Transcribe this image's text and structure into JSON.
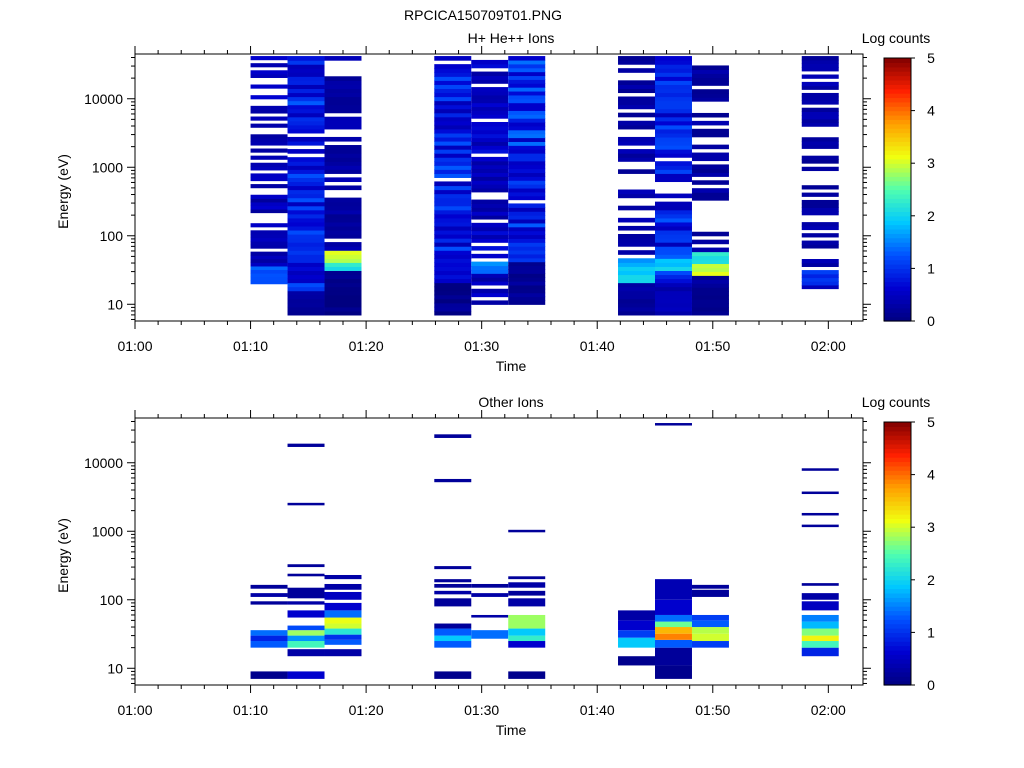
{
  "figure": {
    "title": "RPCICA150709T01.PNG"
  },
  "colors": {
    "colormap": [
      "#000080",
      "#0000d0",
      "#0050ff",
      "#00c8ff",
      "#50ffaf",
      "#f0ff10",
      "#ffa000",
      "#ff2000",
      "#800000"
    ]
  },
  "chart_data": [
    {
      "type": "heatmap",
      "title": "H+ He++ Ions",
      "xlabel": "Time",
      "ylabel": "Energy (eV)",
      "x_tick_labels": [
        "01:00",
        "01:10",
        "01:20",
        "01:30",
        "01:40",
        "01:50",
        "02:00"
      ],
      "x_ticks_minutes": [
        0,
        10,
        20,
        30,
        40,
        50,
        60
      ],
      "xlim_minutes": [
        0,
        63
      ],
      "y_scale": "log",
      "y_tick_labels": [
        "10",
        "100",
        "1000",
        "10000"
      ],
      "y_ticks": [
        10,
        100,
        1000,
        10000
      ],
      "ylim": [
        5.7,
        45000
      ],
      "colorbar": {
        "label": "Log counts",
        "tick_labels": [
          "0",
          "1",
          "2",
          "3",
          "4",
          "5"
        ],
        "ticks": [
          0,
          1,
          2,
          3,
          4,
          5
        ],
        "range": [
          0,
          5
        ]
      },
      "columns": [
        {
          "t0": 10.0,
          "t1": 13.2,
          "emin": 20,
          "emax": 42000,
          "bands": [
            [
              20,
              36,
              1.3
            ],
            [
              36,
              60,
              0.4
            ]
          ],
          "base": 0.5,
          "gap": 0.35,
          "seed": 11
        },
        {
          "t0": 13.2,
          "t1": 16.4,
          "emin": 7,
          "emax": 42000,
          "bands": [
            [
              7,
              15,
              0.2
            ],
            [
              20,
              40,
              0.6
            ],
            [
              40,
              100,
              1.0
            ]
          ],
          "base": 1.0,
          "gap": 0.05,
          "seed": 23
        },
        {
          "t0": 16.4,
          "t1": 19.6,
          "emin": 7,
          "emax": 42000,
          "bands": [
            [
              7,
              30,
              0.1
            ],
            [
              30,
              40,
              2.2
            ],
            [
              40,
              60,
              3.0
            ]
          ],
          "base": 0.35,
          "gap": 0.35,
          "seed": 37
        },
        {
          "t0": 25.9,
          "t1": 29.1,
          "emin": 7,
          "emax": 42000,
          "bands": [
            [
              7,
              20,
              0.1
            ],
            [
              20,
              60,
              0.6
            ]
          ],
          "base": 1.0,
          "gap": 0.06,
          "seed": 41
        },
        {
          "t0": 29.1,
          "t1": 32.3,
          "emin": 10,
          "emax": 42000,
          "bands": [
            [
              30,
              40,
              1.5
            ]
          ],
          "base": 0.6,
          "gap": 0.2,
          "seed": 53
        },
        {
          "t0": 32.3,
          "t1": 35.5,
          "emin": 10,
          "emax": 42000,
          "bands": [
            [
              10,
              40,
              0.2
            ],
            [
              40,
              80,
              1.0
            ]
          ],
          "base": 1.1,
          "gap": 0.04,
          "seed": 67
        },
        {
          "t0": 41.8,
          "t1": 45.0,
          "emin": 7,
          "emax": 42000,
          "bands": [
            [
              7,
              20,
              0.2
            ],
            [
              20,
              36,
              2.0
            ],
            [
              36,
              50,
              1.6
            ]
          ],
          "base": 0.35,
          "gap": 0.4,
          "seed": 71
        },
        {
          "t0": 45.0,
          "t1": 48.2,
          "emin": 7,
          "emax": 42000,
          "bands": [
            [
              7,
              20,
              0.4
            ],
            [
              30,
              45,
              1.9
            ],
            [
              45,
              60,
              1.3
            ]
          ],
          "base": 1.0,
          "gap": 0.05,
          "seed": 83
        },
        {
          "t0": 48.2,
          "t1": 51.4,
          "emin": 7,
          "emax": 35000,
          "bands": [
            [
              7,
              25,
              0.2
            ],
            [
              25,
              40,
              3.0
            ],
            [
              40,
              60,
              2.2
            ]
          ],
          "base": 0.3,
          "gap": 0.4,
          "seed": 97
        },
        {
          "t0": 57.7,
          "t1": 60.9,
          "emin": 15,
          "emax": 42000,
          "bands": [
            [
              20,
              30,
              1.0
            ]
          ],
          "base": 0.35,
          "gap": 0.3,
          "seed": 101
        }
      ]
    },
    {
      "type": "heatmap",
      "title": "Other Ions",
      "xlabel": "Time",
      "ylabel": "Energy (eV)",
      "x_tick_labels": [
        "01:00",
        "01:10",
        "01:20",
        "01:30",
        "01:40",
        "01:50",
        "02:00"
      ],
      "x_ticks_minutes": [
        0,
        10,
        20,
        30,
        40,
        50,
        60
      ],
      "xlim_minutes": [
        0,
        63
      ],
      "y_scale": "log",
      "y_tick_labels": [
        "10",
        "100",
        "1000",
        "10000"
      ],
      "y_ticks": [
        10,
        100,
        1000,
        10000
      ],
      "ylim": [
        5.7,
        45000
      ],
      "colorbar": {
        "label": "Log counts",
        "tick_labels": [
          "0",
          "1",
          "2",
          "3",
          "4",
          "5"
        ],
        "ticks": [
          0,
          1,
          2,
          3,
          4,
          5
        ],
        "range": [
          0,
          5
        ]
      },
      "columns": [
        {
          "t0": 10.0,
          "t1": 13.2,
          "segments": [
            [
              7,
              9,
              0.1
            ],
            [
              20,
              25,
              1.3
            ],
            [
              25,
              30,
              0.9
            ],
            [
              30,
              36,
              1.4
            ],
            [
              85,
              95,
              0.2
            ],
            [
              110,
              125,
              0.3
            ],
            [
              145,
              165,
              0.2
            ]
          ]
        },
        {
          "t0": 13.2,
          "t1": 16.4,
          "segments": [
            [
              7,
              9,
              0.6
            ],
            [
              15,
              19,
              0.3
            ],
            [
              20,
              25,
              2.4
            ],
            [
              25,
              30,
              1.6
            ],
            [
              30,
              36,
              2.8
            ],
            [
              36,
              42,
              1.2
            ],
            [
              55,
              70,
              0.6
            ],
            [
              85,
              95,
              0.3
            ],
            [
              105,
              150,
              0.2
            ],
            [
              220,
              240,
              0.2
            ],
            [
              300,
              330,
              0.2
            ],
            [
              2400,
              2600,
              0.2
            ],
            [
              17000,
              19000,
              0.2
            ]
          ]
        },
        {
          "t0": 16.4,
          "t1": 19.6,
          "segments": [
            [
              15,
              19,
              0.3
            ],
            [
              22,
              26,
              1.3
            ],
            [
              26,
              31,
              1.0
            ],
            [
              31,
              38,
              2.2
            ],
            [
              38,
              45,
              3.0
            ],
            [
              45,
              55,
              3.1
            ],
            [
              55,
              70,
              1.4
            ],
            [
              70,
              90,
              0.6
            ],
            [
              100,
              130,
              0.5
            ],
            [
              140,
              170,
              0.3
            ],
            [
              200,
              230,
              0.3
            ]
          ]
        },
        {
          "t0": 25.9,
          "t1": 29.1,
          "segments": [
            [
              7,
              9,
              0.1
            ],
            [
              20,
              25,
              1.3
            ],
            [
              25,
              30,
              1.9
            ],
            [
              30,
              38,
              1.3
            ],
            [
              38,
              45,
              0.2
            ],
            [
              80,
              105,
              0.2
            ],
            [
              120,
              135,
              0.3
            ],
            [
              150,
              170,
              0.2
            ],
            [
              180,
              200,
              0.2
            ],
            [
              280,
              310,
              0.2
            ],
            [
              5200,
              5800,
              0.2
            ],
            [
              23000,
              26000,
              0.2
            ]
          ]
        },
        {
          "t0": 29.1,
          "t1": 32.3,
          "segments": [
            [
              27,
              36,
              1.4
            ],
            [
              55,
              60,
              0.3
            ],
            [
              110,
              125,
              0.3
            ],
            [
              150,
              170,
              0.2
            ]
          ]
        },
        {
          "t0": 32.3,
          "t1": 35.5,
          "segments": [
            [
              7,
              9,
              0.1
            ],
            [
              20,
              25,
              0.6
            ],
            [
              25,
              30,
              2.3
            ],
            [
              30,
              38,
              1.9
            ],
            [
              38,
              60,
              2.8
            ],
            [
              80,
              105,
              0.3
            ],
            [
              115,
              135,
              0.2
            ],
            [
              150,
              180,
              0.3
            ],
            [
              200,
              220,
              0.2
            ],
            [
              1000,
              1050,
              0.2
            ]
          ]
        },
        {
          "t0": 41.8,
          "t1": 45.0,
          "segments": [
            [
              11,
              15,
              0.1
            ],
            [
              20,
              28,
              1.9
            ],
            [
              28,
              36,
              1.1
            ],
            [
              36,
              50,
              0.6
            ],
            [
              50,
              70,
              0.3
            ]
          ]
        },
        {
          "t0": 45.0,
          "t1": 48.2,
          "segments": [
            [
              7,
              11,
              0.1
            ],
            [
              11,
              20,
              0.2
            ],
            [
              20,
              26,
              1.3
            ],
            [
              26,
              32,
              3.9
            ],
            [
              32,
              40,
              3.6
            ],
            [
              40,
              48,
              2.6
            ],
            [
              48,
              60,
              1.4
            ],
            [
              60,
              100,
              0.6
            ],
            [
              100,
              200,
              0.4
            ],
            [
              36000,
              38000,
              0.2
            ]
          ]
        },
        {
          "t0": 48.2,
          "t1": 51.4,
          "segments": [
            [
              20,
              25,
              1.1
            ],
            [
              25,
              32,
              3.0
            ],
            [
              32,
              40,
              2.9
            ],
            [
              40,
              50,
              1.3
            ],
            [
              50,
              60,
              1.1
            ],
            [
              110,
              140,
              0.2
            ],
            [
              145,
              165,
              0.2
            ]
          ]
        },
        {
          "t0": 57.7,
          "t1": 60.9,
          "segments": [
            [
              15,
              20,
              0.9
            ],
            [
              20,
              25,
              2.4
            ],
            [
              25,
              30,
              3.2
            ],
            [
              30,
              38,
              2.7
            ],
            [
              38,
              48,
              1.8
            ],
            [
              48,
              60,
              1.5
            ],
            [
              70,
              95,
              0.5
            ],
            [
              100,
              125,
              0.3
            ],
            [
              160,
              175,
              0.2
            ],
            [
              1150,
              1250,
              0.2
            ],
            [
              1700,
              1850,
              0.2
            ],
            [
              3500,
              3800,
              0.2
            ],
            [
              7800,
              8300,
              0.2
            ]
          ]
        }
      ]
    }
  ]
}
